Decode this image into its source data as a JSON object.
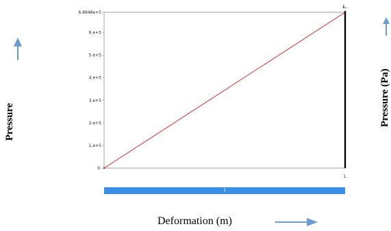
{
  "chart_data": {
    "type": "line",
    "x": [
      0,
      1
    ],
    "series": [
      {
        "values": [
          0,
          689480
        ]
      }
    ],
    "ytick_labels": [
      "0.",
      "1.e+5",
      "2.e+5",
      "3.e+5",
      "4.e+5",
      "5.e+5",
      "6.e+5",
      "6.8948e+5"
    ],
    "ytick_values": [
      0,
      100000,
      200000,
      300000,
      400000,
      500000,
      600000,
      689480
    ],
    "xtick_label_end": "1.",
    "top_right_label": "1.",
    "ylim": [
      0,
      689480
    ],
    "xlim": [
      0,
      1
    ],
    "grid": false,
    "xlabel": "Deformation (m)",
    "ylabel_left": "Pressure",
    "ylabel_right": "Pressure (Pa)"
  },
  "scrollbar": {
    "label": "1"
  },
  "colors": {
    "series_line": "#d42020",
    "end_marker": "#000000",
    "scrollbar": "#3a8ee6",
    "arrow": "#6b9bd1",
    "frame": "#8a8a8a"
  },
  "icons": {
    "up_arrow_left": "up-arrow-icon",
    "up_arrow_right": "up-arrow-icon",
    "right_arrow": "right-arrow-icon"
  }
}
